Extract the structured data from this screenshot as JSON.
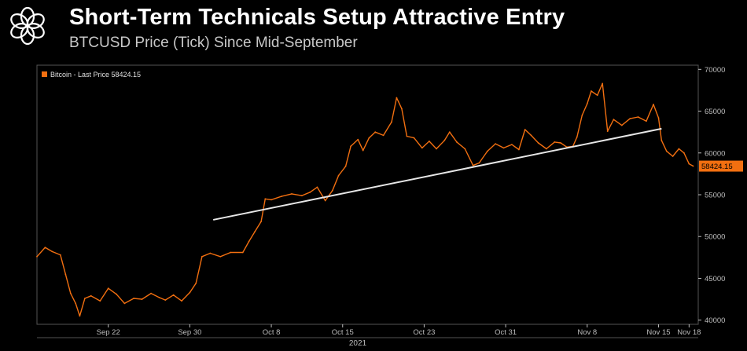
{
  "header": {
    "title": "Short-Term Technicals Setup Attractive Entry",
    "subtitle": "BTCUSD Price (Tick) Since Mid-September",
    "logo_icon": "flower-knot-logo"
  },
  "colors": {
    "background": "#000000",
    "series": "#f26f10",
    "trendline": "#e6e6e6",
    "axis": "#bdbdbd",
    "grid": "#3a3a3a"
  },
  "chart_data": {
    "type": "line",
    "legend": {
      "label": "Bitcoin - Last Price 58424.15",
      "position": "top-left"
    },
    "last_price_tag": "58424.15",
    "xlabel": "2021",
    "ylabel": "",
    "ylim": [
      39500,
      70500
    ],
    "y_ticks": [
      40000,
      45000,
      50000,
      55000,
      60000,
      65000,
      70000
    ],
    "y_tick_labels": [
      "40000",
      "45000",
      "50000",
      "55000",
      "60000",
      "65000",
      "70000"
    ],
    "x_ticks": [
      {
        "label": "Sep 22",
        "t": 7
      },
      {
        "label": "Sep 30",
        "t": 15
      },
      {
        "label": "Oct 8",
        "t": 23
      },
      {
        "label": "Oct 15",
        "t": 30
      },
      {
        "label": "Oct 23",
        "t": 38
      },
      {
        "label": "Oct 31",
        "t": 46
      },
      {
        "label": "Nov 8",
        "t": 54
      },
      {
        "label": "Nov 15",
        "t": 61
      },
      {
        "label": "Nov 18",
        "t": 64
      }
    ],
    "series": [
      {
        "name": "Bitcoin",
        "points": [
          [
            0,
            47600
          ],
          [
            0.8,
            48700
          ],
          [
            1.5,
            48200
          ],
          [
            2.3,
            47800
          ],
          [
            2.8,
            45500
          ],
          [
            3.3,
            43200
          ],
          [
            3.8,
            42000
          ],
          [
            4.2,
            40500
          ],
          [
            4.7,
            42600
          ],
          [
            5.3,
            42900
          ],
          [
            6.2,
            42300
          ],
          [
            7.0,
            43800
          ],
          [
            7.8,
            43100
          ],
          [
            8.6,
            42000
          ],
          [
            9.5,
            42600
          ],
          [
            10.3,
            42500
          ],
          [
            11.2,
            43200
          ],
          [
            12.0,
            42700
          ],
          [
            12.6,
            42400
          ],
          [
            13.4,
            43000
          ],
          [
            14.2,
            42300
          ],
          [
            15.0,
            43300
          ],
          [
            15.6,
            44400
          ],
          [
            16.2,
            47600
          ],
          [
            17.0,
            48000
          ],
          [
            18.0,
            47600
          ],
          [
            19.0,
            48100
          ],
          [
            20.2,
            48100
          ],
          [
            20.8,
            49400
          ],
          [
            21.4,
            50600
          ],
          [
            22.0,
            51800
          ],
          [
            22.4,
            54500
          ],
          [
            23.0,
            54400
          ],
          [
            24.0,
            54800
          ],
          [
            25.0,
            55100
          ],
          [
            26.0,
            54900
          ],
          [
            26.8,
            55300
          ],
          [
            27.5,
            55900
          ],
          [
            28.3,
            54300
          ],
          [
            29.0,
            55500
          ],
          [
            29.6,
            57300
          ],
          [
            30.3,
            58400
          ],
          [
            30.8,
            60800
          ],
          [
            31.5,
            61600
          ],
          [
            32.0,
            60300
          ],
          [
            32.6,
            61800
          ],
          [
            33.2,
            62500
          ],
          [
            34.0,
            62100
          ],
          [
            34.8,
            63700
          ],
          [
            35.3,
            66600
          ],
          [
            35.8,
            65300
          ],
          [
            36.3,
            62000
          ],
          [
            37.0,
            61800
          ],
          [
            37.8,
            60600
          ],
          [
            38.5,
            61400
          ],
          [
            39.2,
            60500
          ],
          [
            40.0,
            61500
          ],
          [
            40.5,
            62500
          ],
          [
            41.2,
            61300
          ],
          [
            42.0,
            60500
          ],
          [
            42.8,
            58500
          ],
          [
            43.4,
            58800
          ],
          [
            44.2,
            60200
          ],
          [
            45.0,
            61100
          ],
          [
            45.8,
            60600
          ],
          [
            46.6,
            61000
          ],
          [
            47.3,
            60400
          ],
          [
            47.9,
            62800
          ],
          [
            48.5,
            62100
          ],
          [
            49.2,
            61200
          ],
          [
            50.0,
            60500
          ],
          [
            50.8,
            61300
          ],
          [
            51.4,
            61200
          ],
          [
            52.0,
            60700
          ],
          [
            52.6,
            60800
          ],
          [
            53.0,
            61900
          ],
          [
            53.5,
            64500
          ],
          [
            54.0,
            65900
          ],
          [
            54.4,
            67400
          ],
          [
            55.0,
            66900
          ],
          [
            55.5,
            68300
          ],
          [
            56.0,
            62600
          ],
          [
            56.6,
            64000
          ],
          [
            57.4,
            63300
          ],
          [
            58.2,
            64100
          ],
          [
            59.0,
            64300
          ],
          [
            59.8,
            63800
          ],
          [
            60.5,
            65800
          ],
          [
            61.0,
            64200
          ],
          [
            61.3,
            61500
          ],
          [
            61.8,
            60200
          ],
          [
            62.4,
            59600
          ],
          [
            63.0,
            60500
          ],
          [
            63.5,
            60000
          ],
          [
            64.0,
            58700
          ],
          [
            64.4,
            58424.15
          ]
        ]
      }
    ],
    "trendline": {
      "start": [
        17.3,
        52000
      ],
      "end": [
        61.3,
        62900
      ]
    }
  }
}
